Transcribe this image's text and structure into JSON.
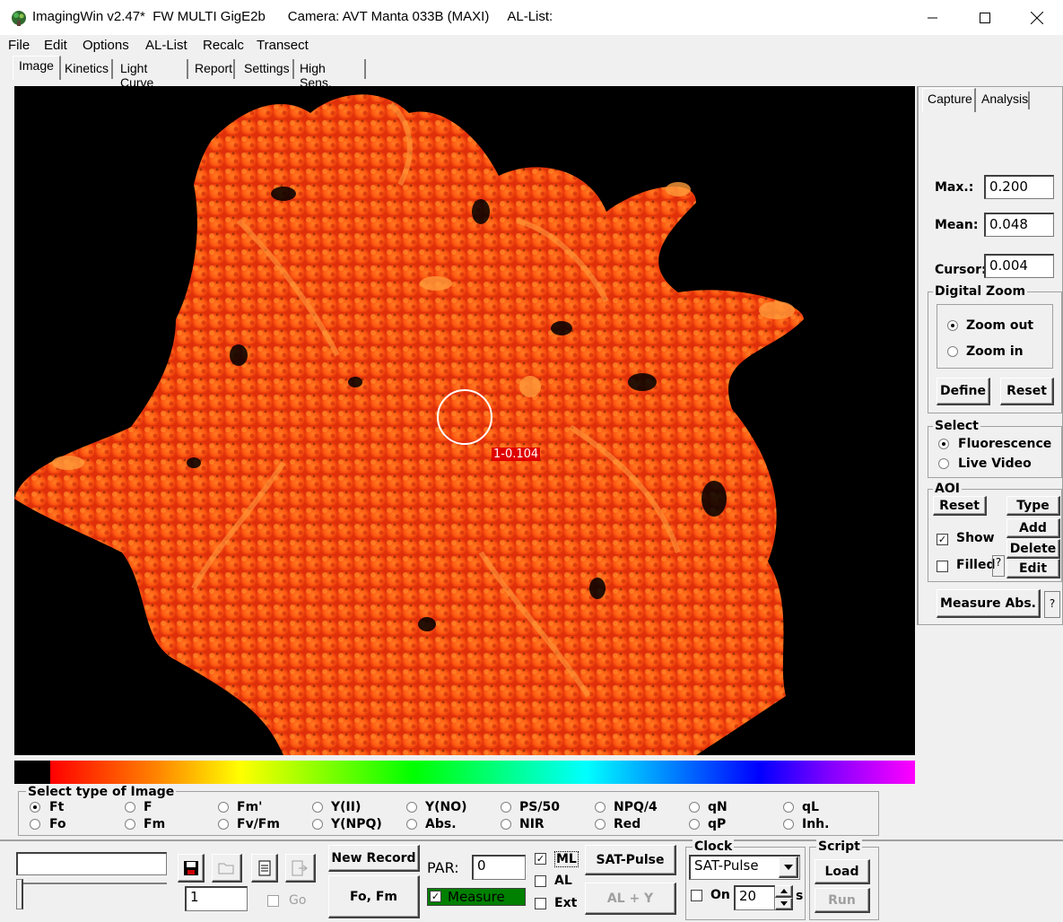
{
  "window": {
    "title": "ImagingWin v2.47*  FW MULTI GigE2b      Camera: AVT Manta 033B (MAXI)     AL-List:"
  },
  "menu": [
    "File",
    "Edit",
    "Options",
    "AL-List",
    "Recalc",
    "Transect"
  ],
  "tabs": [
    "Image",
    "Kinetics",
    "Light Curve",
    "Report",
    "Settings",
    "High Sens."
  ],
  "image": {
    "aoi_label": "1-0.104",
    "colors": {
      "background": "#000000",
      "plant_dark": "#e0300a",
      "plant_mid": "#ff5a12",
      "plant_light": "#ff8c2a"
    }
  },
  "right_panel": {
    "tabs": [
      "Capture",
      "Analysis"
    ],
    "max_label": "Max.:",
    "max_value": "0.200",
    "mean_label": "Mean:",
    "mean_value": "0.048",
    "cursor_label": "Cursor:",
    "cursor_value": "0.004",
    "digital_zoom": {
      "title": "Digital Zoom",
      "zoom_out": "Zoom out",
      "zoom_in": "Zoom in",
      "define": "Define",
      "reset": "Reset"
    },
    "select": {
      "title": "Select",
      "fluorescence": "Fluorescence",
      "live_video": "Live Video"
    },
    "aoi": {
      "title": "AOI",
      "reset": "Reset",
      "type": "Type",
      "add": "Add",
      "show": "Show",
      "delete": "Delete",
      "filled": "Filled",
      "edit": "Edit"
    },
    "measure_abs": "Measure Abs."
  },
  "image_type": {
    "title": "Select type of Image",
    "row1": [
      "Ft",
      "F",
      "Fm'",
      "Y(II)",
      "Y(NO)",
      "PS/50",
      "NPQ/4",
      "qN",
      "qL"
    ],
    "row2": [
      "Fo",
      "Fm",
      "Fv/Fm",
      "Y(NPQ)",
      "Abs.",
      "NIR",
      "Red",
      "qP",
      "Inh."
    ],
    "selected": "Ft"
  },
  "bottom": {
    "record_value": "1",
    "go": "Go",
    "new_record": "New Record",
    "fo_fm": "Fo, Fm",
    "par_label": "PAR:",
    "par_value": "0",
    "measure": "Measure",
    "ml": "ML",
    "al": "AL",
    "ext": "Ext",
    "sat_pulse": "SAT-Pulse",
    "al_y": "AL + Y",
    "clock": {
      "title": "Clock",
      "selected": "SAT-Pulse",
      "on": "On",
      "interval": "20",
      "unit": "s"
    },
    "script": {
      "title": "Script",
      "load": "Load",
      "run": "Run"
    }
  }
}
